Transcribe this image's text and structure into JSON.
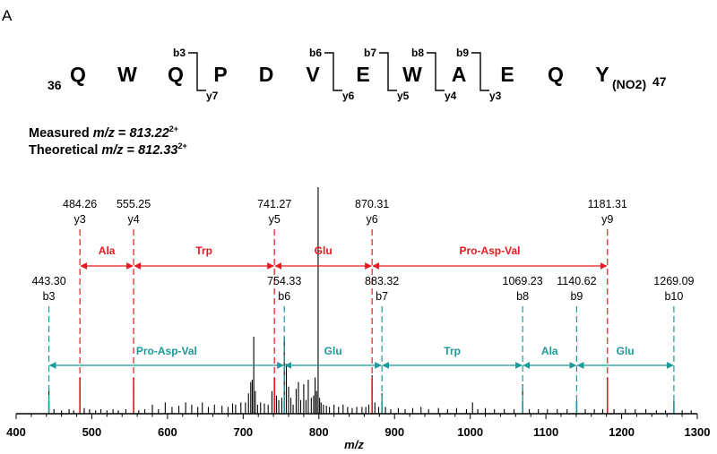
{
  "panel_label": "A",
  "sequence": {
    "start_number": "36",
    "end_number": "47",
    "residues": [
      "Q",
      "W",
      "Q",
      "P",
      "D",
      "V",
      "E",
      "W",
      "A",
      "E",
      "Q",
      "Y"
    ],
    "modification": "NO2",
    "cleavages": [
      {
        "b": "b3",
        "y": "y7"
      },
      {
        "b": "b6",
        "y": "y6"
      },
      {
        "b": "b7",
        "y": "y5"
      },
      {
        "b": "b8",
        "y": "y4"
      },
      {
        "b": "b9",
        "y": "y3"
      }
    ]
  },
  "measured": {
    "label": "Measured",
    "mz_label": "m/z",
    "value": "813.22",
    "charge": "2+"
  },
  "theoretical": {
    "label": "Theoretical",
    "mz_label": "m/z",
    "value": "812.33",
    "charge": "2+"
  },
  "chart_data": {
    "type": "bar",
    "title": "",
    "xlabel": "m/z",
    "ylabel": "",
    "xlim": [
      400,
      1300
    ],
    "x_ticks": [
      400,
      500,
      600,
      700,
      800,
      900,
      1000,
      1100,
      1200,
      1300
    ],
    "colors": {
      "y_ions": "#e8191f",
      "b_ions": "#1a9a99",
      "peaks": "#000000"
    },
    "y_ions": [
      {
        "name": "y3",
        "mz": 484.26,
        "label": "484.26"
      },
      {
        "name": "y4",
        "mz": 555.25,
        "label": "555.25"
      },
      {
        "name": "y5",
        "mz": 741.27,
        "label": "741.27"
      },
      {
        "name": "y6",
        "mz": 870.31,
        "label": "870.31"
      },
      {
        "name": "y9",
        "mz": 1181.31,
        "label": "1181.31"
      }
    ],
    "b_ions": [
      {
        "name": "b3",
        "mz": 443.3,
        "label": "443.30"
      },
      {
        "name": "b6",
        "mz": 754.33,
        "label": "754.33"
      },
      {
        "name": "b7",
        "mz": 883.32,
        "label": "883.32"
      },
      {
        "name": "b8",
        "mz": 1069.23,
        "label": "1069.23"
      },
      {
        "name": "b9",
        "mz": 1140.62,
        "label": "1140.62"
      },
      {
        "name": "b10",
        "mz": 1269.09,
        "label": "1269.09"
      }
    ],
    "y_gaps": [
      {
        "from": 484.26,
        "to": 555.25,
        "label": "Ala"
      },
      {
        "from": 555.25,
        "to": 741.27,
        "label": "Trp"
      },
      {
        "from": 741.27,
        "to": 870.31,
        "label": "Glu"
      },
      {
        "from": 870.31,
        "to": 1181.31,
        "label": "Pro-Asp-Val"
      }
    ],
    "b_gaps": [
      {
        "from": 443.3,
        "to": 754.33,
        "label": "Pro-Asp-Val"
      },
      {
        "from": 754.33,
        "to": 883.32,
        "label": "Glu"
      },
      {
        "from": 883.32,
        "to": 1069.23,
        "label": "Trp"
      },
      {
        "from": 1069.23,
        "to": 1140.62,
        "label": "Ala"
      },
      {
        "from": 1140.62,
        "to": 1269.09,
        "label": "Glu"
      }
    ],
    "peaks": [
      [
        443.3,
        0.11
      ],
      [
        450,
        0.02
      ],
      [
        460,
        0.015
      ],
      [
        470,
        0.02
      ],
      [
        476,
        0.015
      ],
      [
        484.3,
        0.12
      ],
      [
        490,
        0.025
      ],
      [
        497,
        0.02
      ],
      [
        505,
        0.015
      ],
      [
        512,
        0.02
      ],
      [
        520,
        0.015
      ],
      [
        528,
        0.02
      ],
      [
        535,
        0.015
      ],
      [
        545,
        0.02
      ],
      [
        555.3,
        0.06
      ],
      [
        562,
        0.015
      ],
      [
        570,
        0.02
      ],
      [
        580,
        0.04
      ],
      [
        588,
        0.02
      ],
      [
        597,
        0.05
      ],
      [
        606,
        0.03
      ],
      [
        615,
        0.035
      ],
      [
        624,
        0.05
      ],
      [
        632,
        0.04
      ],
      [
        640,
        0.03
      ],
      [
        646,
        0.05
      ],
      [
        654,
        0.03
      ],
      [
        662,
        0.04
      ],
      [
        672,
        0.035
      ],
      [
        680,
        0.03
      ],
      [
        686,
        0.045
      ],
      [
        690,
        0.04
      ],
      [
        697,
        0.05
      ],
      [
        703,
        0.05
      ],
      [
        707,
        0.09
      ],
      [
        710,
        0.14
      ],
      [
        712,
        0.15
      ],
      [
        714,
        0.34
      ],
      [
        716,
        0.1
      ],
      [
        719,
        0.04
      ],
      [
        723,
        0.05
      ],
      [
        728,
        0.045
      ],
      [
        733,
        0.04
      ],
      [
        738,
        0.1
      ],
      [
        741.3,
        0.14
      ],
      [
        744,
        0.08
      ],
      [
        747,
        0.06
      ],
      [
        751,
        0.07
      ],
      [
        754.3,
        0.34
      ],
      [
        757,
        0.22
      ],
      [
        760,
        0.12
      ],
      [
        763,
        0.07
      ],
      [
        766,
        0.04
      ],
      [
        770,
        0.11
      ],
      [
        773,
        0.14
      ],
      [
        776,
        0.06
      ],
      [
        780,
        0.13
      ],
      [
        783,
        0.06
      ],
      [
        786,
        0.15
      ],
      [
        790,
        0.07
      ],
      [
        793,
        0.08
      ],
      [
        795,
        0.16
      ],
      [
        797,
        0.1
      ],
      [
        799,
        1.0
      ],
      [
        801,
        0.07
      ],
      [
        803,
        0.05
      ],
      [
        806,
        0.04
      ],
      [
        810,
        0.035
      ],
      [
        814,
        0.03
      ],
      [
        820,
        0.04
      ],
      [
        826,
        0.03
      ],
      [
        832,
        0.04
      ],
      [
        838,
        0.03
      ],
      [
        844,
        0.025
      ],
      [
        850,
        0.03
      ],
      [
        857,
        0.03
      ],
      [
        862,
        0.03
      ],
      [
        866,
        0.04
      ],
      [
        870.3,
        0.17
      ],
      [
        874,
        0.05
      ],
      [
        879,
        0.03
      ],
      [
        883.3,
        0.09
      ],
      [
        888,
        0.03
      ],
      [
        895,
        0.02
      ],
      [
        905,
        0.025
      ],
      [
        914,
        0.02
      ],
      [
        924,
        0.025
      ],
      [
        935,
        0.03
      ],
      [
        945,
        0.02
      ],
      [
        958,
        0.025
      ],
      [
        970,
        0.02
      ],
      [
        982,
        0.025
      ],
      [
        995,
        0.02
      ],
      [
        1003,
        0.05
      ],
      [
        1010,
        0.02
      ],
      [
        1020,
        0.025
      ],
      [
        1032,
        0.02
      ],
      [
        1045,
        0.02
      ],
      [
        1058,
        0.02
      ],
      [
        1069.2,
        0.13
      ],
      [
        1078,
        0.02
      ],
      [
        1090,
        0.02
      ],
      [
        1102,
        0.02
      ],
      [
        1115,
        0.02
      ],
      [
        1128,
        0.02
      ],
      [
        1140.6,
        0.05
      ],
      [
        1152,
        0.02
      ],
      [
        1164,
        0.02
      ],
      [
        1175,
        0.02
      ],
      [
        1181.3,
        0.14
      ],
      [
        1190,
        0.02
      ],
      [
        1205,
        0.02
      ],
      [
        1218,
        0.02
      ],
      [
        1232,
        0.02
      ],
      [
        1246,
        0.015
      ],
      [
        1258,
        0.015
      ],
      [
        1269.1,
        0.05
      ],
      [
        1280,
        0.015
      ],
      [
        1292,
        0.015
      ]
    ]
  }
}
